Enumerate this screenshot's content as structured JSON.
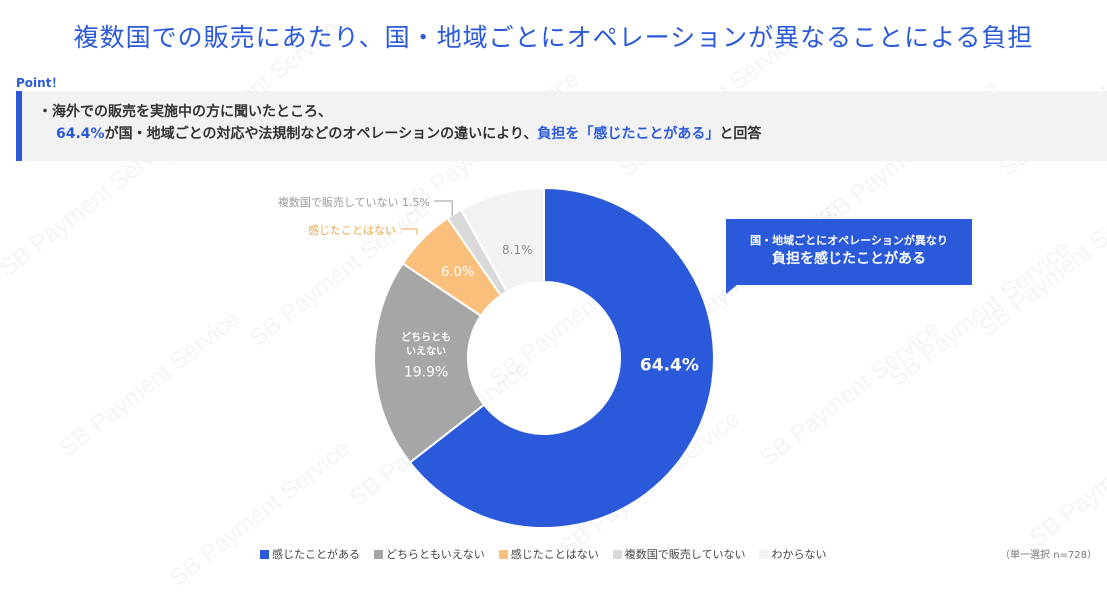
{
  "header": {
    "title": "複数国での販売にあたり、国・地域ごとにオペレーションが異なることによる負担"
  },
  "point": {
    "label": "Point！",
    "line1": "・海外での販売を実施中の方に聞いたところ、",
    "line2_pct": "64.4%",
    "line2_mid": "が国・地域ごとの対応や法規制などのオペレーションの違いにより、",
    "line2_hl": "負担を「感じたことがある」",
    "line2_end": "と回答"
  },
  "callout": {
    "line1": "国・地域ごとにオペレーションが異なり",
    "line2": "負担を感じたことがある"
  },
  "watermark": "SB Payment Service",
  "note": "（単一選択 n=728）",
  "colors": {
    "accent": "#2a5ada"
  },
  "chart_data": {
    "type": "pie",
    "donut": true,
    "start_angle_deg": 0,
    "direction": "clockwise",
    "slices": [
      {
        "name": "感じたことがある",
        "value": 64.4,
        "label": "64.4%",
        "inner_label": "",
        "color": "#2a5ada"
      },
      {
        "name": "どちらともいえない",
        "value": 19.9,
        "label": "19.9%",
        "inner_label": "どちらとも\nいえない",
        "color": "#a6a6a6"
      },
      {
        "name": "感じたことはない",
        "value": 6.0,
        "label": "6.0%",
        "inner_label": "",
        "color": "#fbbf7c"
      },
      {
        "name": "複数国で販売していない",
        "value": 1.5,
        "label": "複数国で販売していない 1.5%",
        "inner_label": "",
        "color": "#d9d9d9"
      },
      {
        "name": "わからない",
        "value": 8.1,
        "label": "8.1%",
        "inner_label": "",
        "color": "#f2f2f2"
      }
    ],
    "legend": [
      "感じたことがある",
      "どちらともいえない",
      "感じたことはない",
      "複数国で販売していない",
      "わからない"
    ],
    "legend_position": "bottom"
  }
}
